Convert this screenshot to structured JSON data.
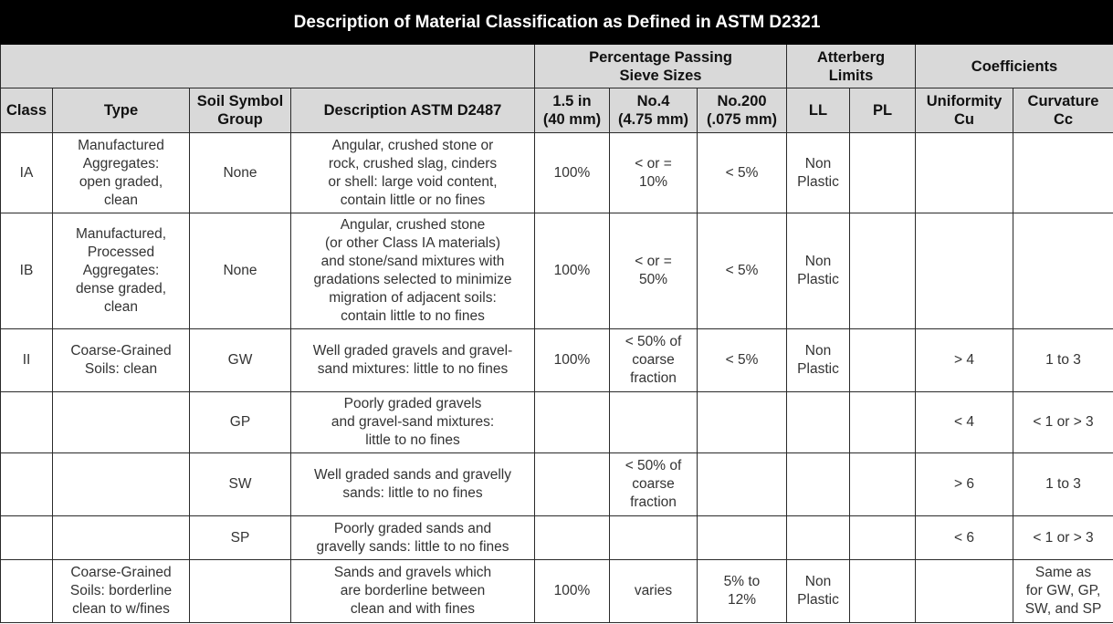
{
  "title": "Description of Material Classification as Defined in ASTM D2321",
  "group_headers": {
    "sieve": "Percentage Passing\nSieve Sizes",
    "atterberg": "Atterberg\nLimits",
    "coefficients": "Coefficients"
  },
  "columns": [
    "Class",
    "Type",
    "Soil Symbol\nGroup",
    "Description ASTM D2487",
    "1.5 in\n(40 mm)",
    "No.4\n(4.75 mm)",
    "No.200\n(.075 mm)",
    "LL",
    "PL",
    "Uniformity\nCu",
    "Curvature\nCc"
  ],
  "rows": [
    [
      "IA",
      "Manufactured\nAggregates:\nopen graded,\nclean",
      "None",
      "Angular, crushed stone or\nrock, crushed slag, cinders\nor shell: large void content,\ncontain little or no fines",
      "100%",
      "< or =\n10%",
      "< 5%",
      "Non\nPlastic",
      "",
      "",
      ""
    ],
    [
      "IB",
      "Manufactured,\nProcessed\nAggregates:\ndense graded,\nclean",
      "None",
      "Angular, crushed stone\n(or other Class IA materials)\nand stone/sand mixtures with\ngradations selected to minimize\nmigration of adjacent soils:\ncontain little to no fines",
      "100%",
      "< or =\n50%",
      "< 5%",
      "Non\nPlastic",
      "",
      "",
      ""
    ],
    [
      "II",
      "Coarse-Grained\nSoils: clean",
      "GW",
      "Well graded gravels and gravel-\nsand mixtures: little to no fines",
      "100%",
      "< 50% of\ncoarse\nfraction",
      "< 5%",
      "Non\nPlastic",
      "",
      "> 4",
      "1 to 3"
    ],
    [
      "",
      "",
      "GP",
      "Poorly graded gravels\nand gravel-sand mixtures:\nlittle to no fines",
      "",
      "",
      "",
      "",
      "",
      "< 4",
      "< 1 or > 3"
    ],
    [
      "",
      "",
      "SW",
      "Well graded sands and gravelly\nsands: little to no fines",
      "",
      "< 50% of\ncoarse\nfraction",
      "",
      "",
      "",
      "> 6",
      "1 to 3"
    ],
    [
      "",
      "",
      "SP",
      "Poorly graded sands and\ngravelly sands: little to no fines",
      "",
      "",
      "",
      "",
      "",
      "< 6",
      "< 1 or > 3"
    ],
    [
      "",
      "Coarse-Grained\nSoils: borderline\nclean to w/fines",
      "",
      "Sands and gravels which\nare borderline between\nclean and with fines",
      "100%",
      "varies",
      "5% to\n12%",
      "Non\nPlastic",
      "",
      "",
      "Same as\nfor GW, GP,\nSW, and SP"
    ]
  ]
}
